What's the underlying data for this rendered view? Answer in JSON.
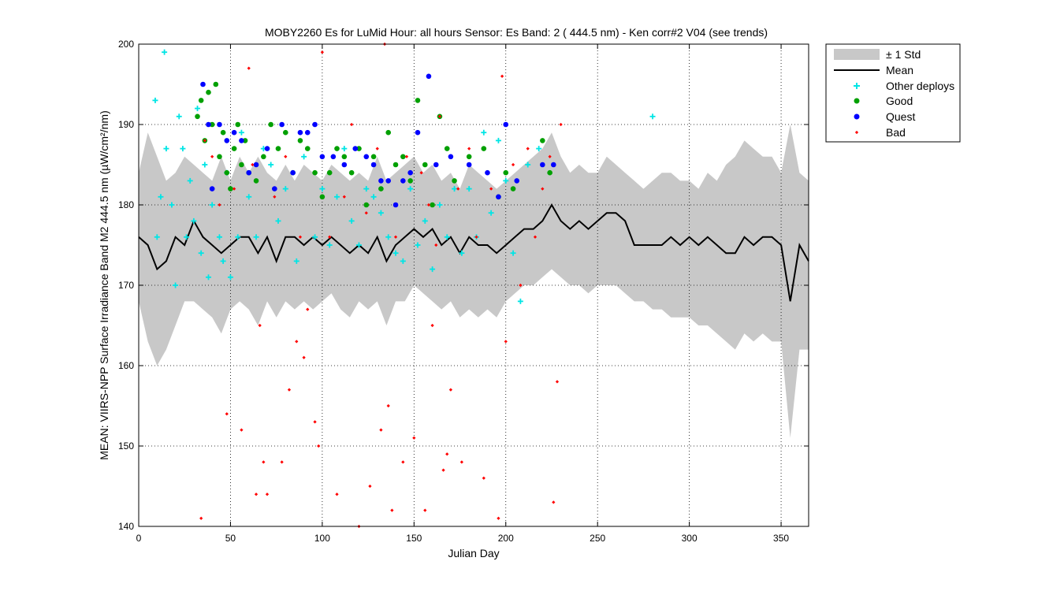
{
  "chart_data": {
    "type": "scatter",
    "title": "MOBY2260   Es for LuMid  Hour: all hours  Sensor: Es Band: 2 ( 444.5 nm)  - Ken corr#2 V04 (see trends)",
    "xlabel": "Julian Day",
    "ylabel": "MEAN: VIIRS-NPP Surface Irradiance Band M2 444.5 nm (µW/cm²/nm)",
    "xlim": [
      0,
      365
    ],
    "ylim": [
      140,
      200
    ],
    "xticks": [
      0,
      50,
      100,
      150,
      200,
      250,
      300,
      350
    ],
    "yticks": [
      140,
      150,
      160,
      170,
      180,
      190,
      200
    ],
    "grid": true,
    "legend_position": "outside-top-right",
    "colors": {
      "std_band": "#c8c8c8",
      "mean": "#000000",
      "other": "#00e5e5",
      "good": "#00a000",
      "quest": "#0000ff",
      "bad": "#ff0000"
    },
    "legend": [
      "± 1 Std",
      "Mean",
      "Other deploys",
      "Good",
      "Quest",
      "Bad"
    ],
    "mean_line": {
      "x": [
        0,
        5,
        10,
        15,
        20,
        25,
        30,
        35,
        40,
        45,
        50,
        55,
        60,
        65,
        70,
        75,
        80,
        85,
        90,
        95,
        100,
        105,
        110,
        115,
        120,
        125,
        130,
        135,
        140,
        145,
        150,
        155,
        160,
        165,
        170,
        175,
        180,
        185,
        190,
        195,
        200,
        205,
        210,
        215,
        220,
        225,
        230,
        235,
        240,
        245,
        250,
        255,
        260,
        265,
        270,
        275,
        280,
        285,
        290,
        295,
        300,
        305,
        310,
        315,
        320,
        325,
        330,
        335,
        340,
        345,
        350,
        355,
        360,
        365
      ],
      "y": [
        176,
        175,
        172,
        173,
        176,
        175,
        178,
        176,
        175,
        174,
        175,
        176,
        176,
        174,
        176,
        173,
        176,
        176,
        175,
        176,
        175,
        176,
        175,
        174,
        175,
        174,
        176,
        173,
        175,
        176,
        177,
        176,
        177,
        175,
        176,
        174,
        176,
        175,
        175,
        174,
        175,
        176,
        177,
        177,
        178,
        180,
        178,
        177,
        178,
        177,
        178,
        179,
        179,
        178,
        175,
        175,
        175,
        175,
        176,
        175,
        176,
        175,
        176,
        175,
        174,
        174,
        176,
        175,
        176,
        176,
        175,
        168,
        175,
        173
      ]
    },
    "std_band": {
      "x": [
        0,
        5,
        10,
        15,
        20,
        25,
        30,
        35,
        40,
        45,
        50,
        55,
        60,
        65,
        70,
        75,
        80,
        85,
        90,
        95,
        100,
        105,
        110,
        115,
        120,
        125,
        130,
        135,
        140,
        145,
        150,
        155,
        160,
        165,
        170,
        175,
        180,
        185,
        190,
        195,
        200,
        205,
        210,
        215,
        220,
        225,
        230,
        235,
        240,
        245,
        250,
        255,
        260,
        265,
        270,
        275,
        280,
        285,
        290,
        295,
        300,
        305,
        310,
        315,
        320,
        325,
        330,
        335,
        340,
        345,
        350,
        355,
        360,
        365
      ],
      "upper": [
        184,
        189,
        186,
        183,
        184,
        186,
        185,
        184,
        183,
        186,
        183,
        186,
        184,
        186,
        184,
        183,
        185,
        183,
        185,
        184,
        183,
        185,
        184,
        183,
        184,
        183,
        186,
        183,
        184,
        185,
        186,
        184,
        185,
        183,
        184,
        182,
        185,
        184,
        183,
        182,
        183,
        184,
        185,
        186,
        187,
        189,
        186,
        184,
        185,
        184,
        184,
        186,
        185,
        184,
        183,
        182,
        183,
        184,
        184,
        183,
        183,
        182,
        184,
        183,
        185,
        186,
        188,
        187,
        186,
        186,
        184,
        190,
        184,
        183
      ],
      "lower": [
        168,
        163,
        160,
        162,
        165,
        168,
        168,
        167,
        166,
        164,
        167,
        168,
        167,
        165,
        168,
        166,
        168,
        167,
        168,
        167,
        168,
        169,
        167,
        166,
        168,
        167,
        168,
        165,
        168,
        168,
        170,
        169,
        168,
        167,
        168,
        166,
        167,
        166,
        167,
        166,
        168,
        169,
        170,
        170,
        171,
        172,
        171,
        170,
        170,
        169,
        170,
        170,
        170,
        169,
        168,
        168,
        167,
        167,
        166,
        166,
        166,
        165,
        165,
        164,
        163,
        162,
        164,
        163,
        164,
        163,
        163,
        151,
        162,
        162
      ]
    },
    "series": [
      {
        "name": "Other deploys",
        "x": [
          9,
          10,
          12,
          14,
          15,
          18,
          20,
          22,
          24,
          26,
          28,
          30,
          32,
          34,
          36,
          38,
          40,
          44,
          46,
          48,
          50,
          54,
          56,
          60,
          64,
          68,
          72,
          76,
          80,
          86,
          90,
          96,
          100,
          104,
          108,
          112,
          116,
          120,
          124,
          128,
          132,
          136,
          140,
          144,
          148,
          152,
          156,
          160,
          164,
          168,
          172,
          176,
          180,
          184,
          188,
          192,
          196,
          200,
          204,
          208,
          212,
          218,
          280
        ],
        "y": [
          193,
          176,
          181,
          199,
          187,
          180,
          170,
          191,
          187,
          176,
          183,
          178,
          192,
          174,
          185,
          171,
          180,
          176,
          173,
          184,
          171,
          176,
          189,
          181,
          176,
          187,
          185,
          178,
          182,
          173,
          186,
          176,
          182,
          175,
          181,
          187,
          178,
          175,
          182,
          181,
          179,
          176,
          174,
          173,
          182,
          175,
          178,
          172,
          180,
          176,
          182,
          174,
          182,
          176,
          189,
          179,
          188,
          183,
          174,
          168,
          185,
          187,
          191
        ]
      },
      {
        "name": "Good",
        "x": [
          32,
          34,
          36,
          38,
          40,
          42,
          44,
          46,
          48,
          50,
          52,
          54,
          56,
          58,
          60,
          64,
          68,
          72,
          76,
          80,
          84,
          88,
          92,
          96,
          100,
          104,
          108,
          112,
          116,
          120,
          124,
          128,
          132,
          136,
          140,
          144,
          148,
          152,
          156,
          160,
          164,
          168,
          172,
          180,
          188,
          196,
          200,
          204,
          220,
          224
        ],
        "y": [
          191,
          193,
          188,
          194,
          190,
          195,
          186,
          189,
          184,
          182,
          187,
          190,
          185,
          188,
          184,
          183,
          186,
          190,
          187,
          189,
          184,
          188,
          187,
          184,
          181,
          184,
          187,
          186,
          184,
          187,
          180,
          186,
          182,
          189,
          185,
          186,
          183,
          193,
          185,
          180,
          191,
          187,
          183,
          186,
          187,
          181,
          184,
          182,
          188,
          184
        ]
      },
      {
        "name": "Quest",
        "x": [
          35,
          38,
          40,
          44,
          48,
          52,
          56,
          60,
          64,
          70,
          74,
          78,
          84,
          88,
          92,
          96,
          100,
          106,
          112,
          118,
          124,
          128,
          132,
          136,
          140,
          144,
          148,
          152,
          158,
          162,
          170,
          180,
          190,
          196,
          200,
          206,
          220,
          226
        ],
        "y": [
          195,
          190,
          182,
          190,
          188,
          189,
          188,
          184,
          185,
          187,
          182,
          190,
          184,
          189,
          189,
          190,
          186,
          186,
          185,
          187,
          186,
          185,
          183,
          183,
          180,
          183,
          184,
          189,
          196,
          185,
          186,
          185,
          184,
          181,
          190,
          183,
          185,
          185
        ]
      },
      {
        "name": "Bad",
        "x": [
          34,
          36,
          40,
          44,
          48,
          52,
          56,
          60,
          62,
          64,
          66,
          68,
          70,
          74,
          78,
          80,
          82,
          86,
          88,
          90,
          92,
          96,
          98,
          100,
          104,
          108,
          112,
          116,
          120,
          124,
          126,
          130,
          132,
          134,
          136,
          138,
          140,
          144,
          146,
          150,
          154,
          156,
          158,
          160,
          162,
          164,
          166,
          168,
          170,
          174,
          176,
          180,
          184,
          188,
          192,
          196,
          198,
          200,
          204,
          208,
          212,
          216,
          220,
          224,
          226,
          228,
          230
        ],
        "y": [
          141,
          188,
          186,
          180,
          154,
          182,
          152,
          197,
          185,
          144,
          165,
          148,
          144,
          181,
          148,
          186,
          157,
          163,
          176,
          161,
          167,
          153,
          150,
          199,
          176,
          144,
          181,
          190,
          140,
          179,
          145,
          187,
          152,
          200,
          155,
          142,
          176,
          148,
          186,
          151,
          184,
          142,
          180,
          165,
          175,
          191,
          147,
          149,
          157,
          182,
          148,
          187,
          176,
          146,
          182,
          141,
          196,
          163,
          185,
          170,
          187,
          176,
          182,
          186,
          143,
          158,
          190
        ]
      }
    ]
  }
}
